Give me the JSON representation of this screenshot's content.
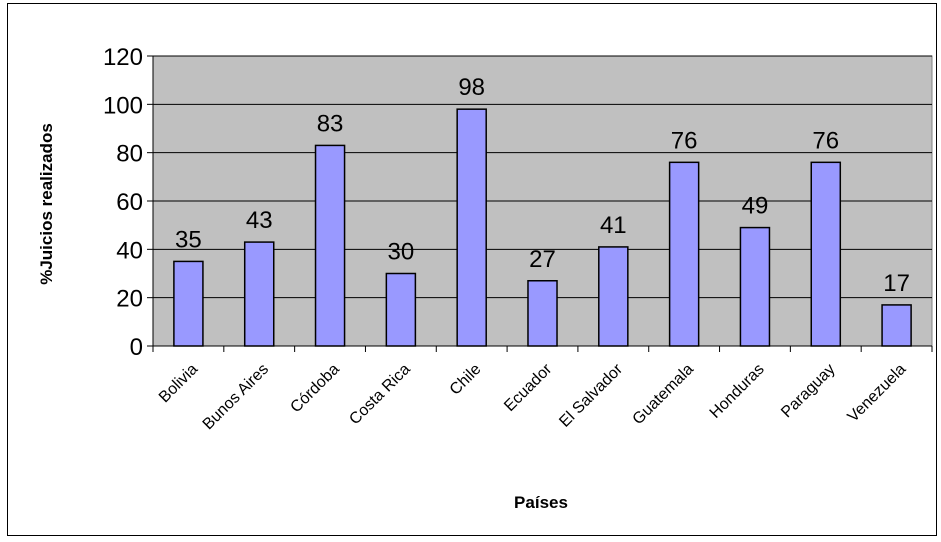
{
  "chart_data": {
    "type": "bar",
    "xlabel": "Países",
    "ylabel": "%Juicios realizados",
    "categories": [
      "Bolivia",
      "Bunos Aires",
      "Córdoba",
      "Costa Rica",
      "Chile",
      "Ecuador",
      "El Salvador",
      "Guatemala",
      "Honduras",
      "Paraguay",
      "Venezuela"
    ],
    "values": [
      35,
      43,
      83,
      30,
      98,
      27,
      41,
      76,
      49,
      76,
      17
    ],
    "ylim": [
      0,
      120
    ],
    "yticks": [
      0,
      20,
      40,
      60,
      80,
      100,
      120
    ],
    "grid": true,
    "legend": "none",
    "colors": {
      "plot_background": "#c0c0c0",
      "bar_fill": "#9999ff",
      "bar_stroke": "#000000",
      "gridline": "#000000"
    }
  }
}
